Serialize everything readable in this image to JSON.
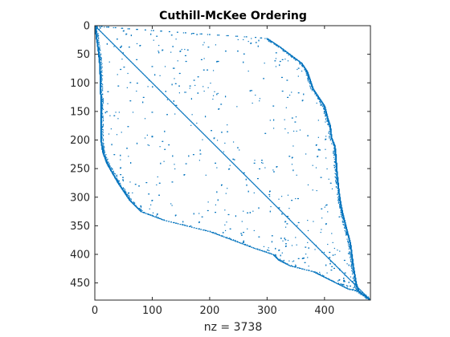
{
  "chart_data": {
    "type": "scatter",
    "title": "Cuthill-McKee Ordering",
    "xlabel": "nz = 3738",
    "ylabel": "",
    "xlim": [
      0,
      480
    ],
    "ylim": [
      0,
      480
    ],
    "y_reversed": true,
    "grid": false,
    "marker_color": "#0072BD",
    "xticks": [
      0,
      100,
      200,
      300,
      400
    ],
    "yticks": [
      0,
      50,
      100,
      150,
      200,
      250,
      300,
      350,
      400,
      450
    ],
    "pattern": {
      "n": 480,
      "nz": 3738,
      "upper_envelope": [
        [
          0,
          0
        ],
        [
          60,
          5
        ],
        [
          130,
          10
        ],
        [
          200,
          15
        ],
        [
          280,
          20
        ],
        [
          300,
          22
        ],
        [
          320,
          35
        ],
        [
          340,
          50
        ],
        [
          360,
          65
        ],
        [
          370,
          80
        ],
        [
          375,
          95
        ],
        [
          380,
          110
        ],
        [
          390,
          125
        ],
        [
          400,
          140
        ],
        [
          405,
          160
        ],
        [
          410,
          175
        ],
        [
          412,
          195
        ],
        [
          418,
          210
        ],
        [
          420,
          230
        ],
        [
          421,
          250
        ],
        [
          423,
          270
        ],
        [
          425,
          290
        ],
        [
          428,
          310
        ],
        [
          432,
          330
        ],
        [
          437,
          350
        ],
        [
          445,
          380
        ],
        [
          450,
          420
        ],
        [
          455,
          450
        ],
        [
          460,
          465
        ],
        [
          480,
          480
        ]
      ],
      "lower_envelope": [
        [
          0,
          0
        ],
        [
          2,
          20
        ],
        [
          5,
          40
        ],
        [
          8,
          70
        ],
        [
          9,
          100
        ],
        [
          10,
          140
        ],
        [
          10,
          200
        ],
        [
          13,
          220
        ],
        [
          20,
          240
        ],
        [
          40,
          275
        ],
        [
          60,
          305
        ],
        [
          80,
          325
        ],
        [
          120,
          340
        ],
        [
          160,
          350
        ],
        [
          200,
          360
        ],
        [
          240,
          375
        ],
        [
          280,
          390
        ],
        [
          310,
          400
        ],
        [
          320,
          410
        ],
        [
          340,
          420
        ],
        [
          360,
          425
        ],
        [
          380,
          430
        ],
        [
          400,
          440
        ],
        [
          420,
          450
        ],
        [
          440,
          460
        ],
        [
          460,
          465
        ],
        [
          480,
          480
        ]
      ]
    }
  }
}
